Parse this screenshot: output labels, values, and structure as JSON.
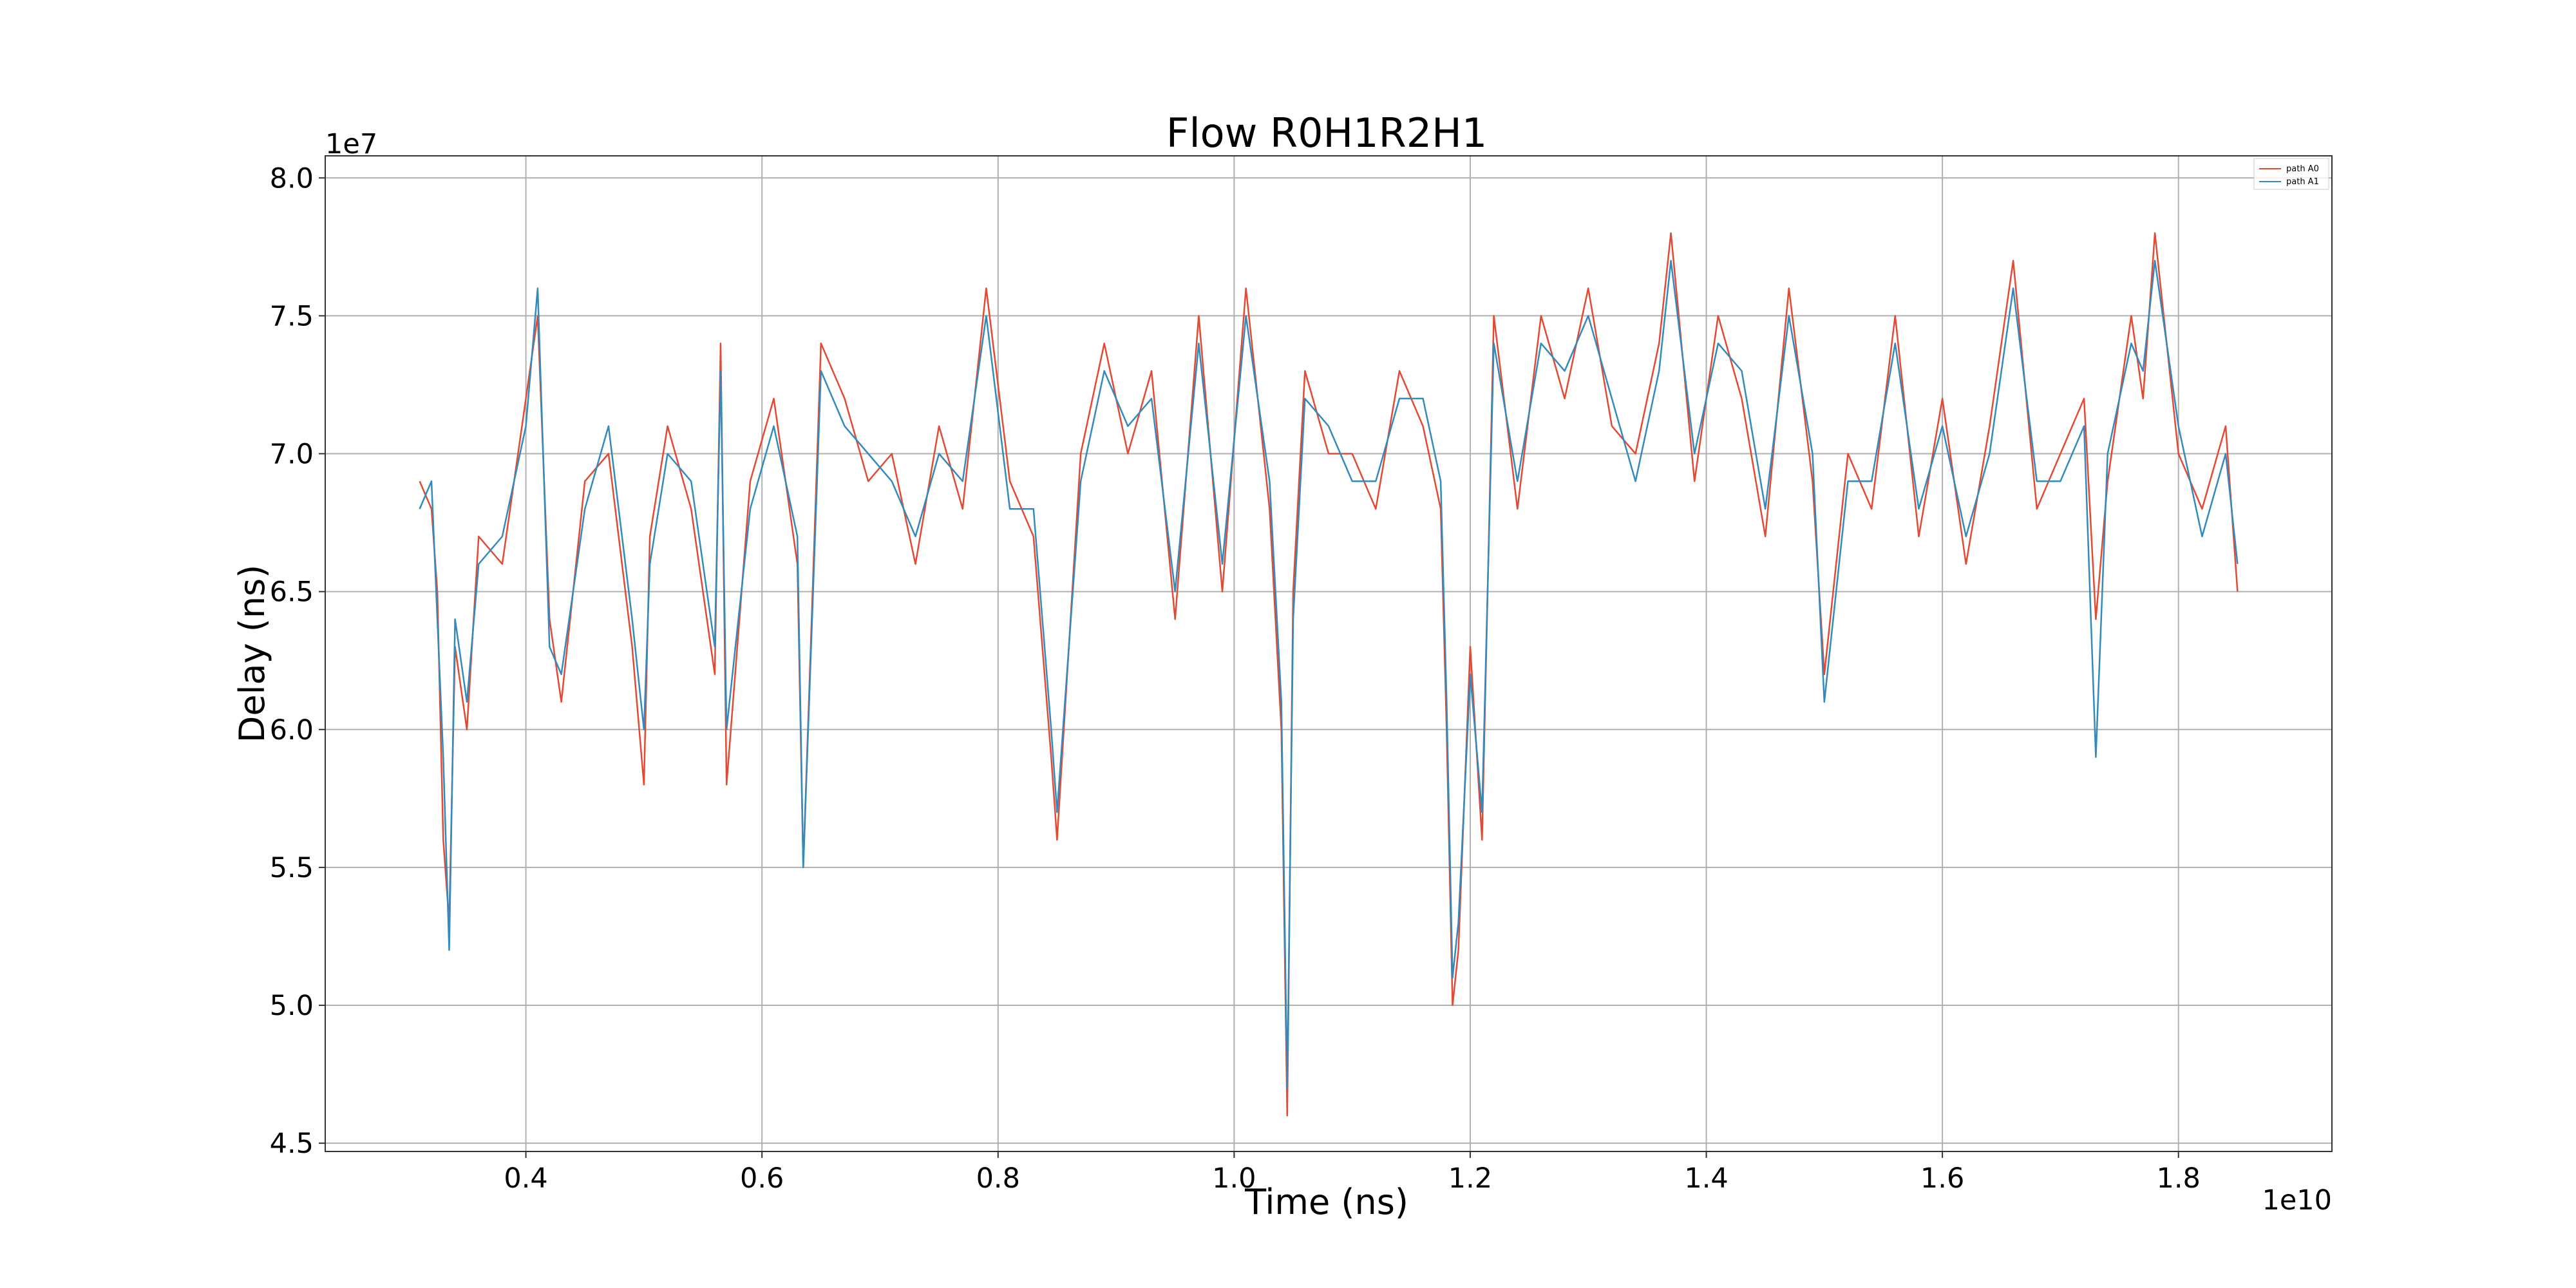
{
  "chart_data": {
    "type": "line",
    "title": "Flow R0H1R2H1",
    "xlabel": "Time (ns)",
    "ylabel": "Delay (ns)",
    "x_offset_label": "1e10",
    "y_offset_label": "1e7",
    "xlim": [
      0.23,
      1.93
    ],
    "ylim": [
      4.47,
      8.08
    ],
    "xticks": [
      0.4,
      0.6,
      0.8,
      1.0,
      1.2,
      1.4,
      1.6,
      1.8
    ],
    "xtick_labels": [
      "0.4",
      "0.6",
      "0.8",
      "1.0",
      "1.2",
      "1.4",
      "1.6",
      "1.8"
    ],
    "yticks": [
      4.5,
      5.0,
      5.5,
      6.0,
      6.5,
      7.0,
      7.5,
      8.0
    ],
    "ytick_labels": [
      "4.5",
      "5.0",
      "5.5",
      "6.0",
      "6.5",
      "7.0",
      "7.5",
      "8.0"
    ],
    "grid": true,
    "legend_position": "top-right",
    "series": [
      {
        "name": "path A0",
        "color": "#e24a33",
        "x": [
          0.31,
          0.32,
          0.325,
          0.33,
          0.335,
          0.34,
          0.35,
          0.36,
          0.38,
          0.4,
          0.41,
          0.42,
          0.43,
          0.45,
          0.47,
          0.49,
          0.5,
          0.505,
          0.52,
          0.54,
          0.56,
          0.565,
          0.57,
          0.59,
          0.61,
          0.63,
          0.635,
          0.65,
          0.67,
          0.69,
          0.71,
          0.73,
          0.75,
          0.77,
          0.79,
          0.81,
          0.83,
          0.845,
          0.85,
          0.87,
          0.89,
          0.91,
          0.93,
          0.95,
          0.97,
          0.99,
          1.01,
          1.03,
          1.04,
          1.045,
          1.05,
          1.06,
          1.08,
          1.1,
          1.12,
          1.14,
          1.16,
          1.175,
          1.18,
          1.185,
          1.19,
          1.2,
          1.21,
          1.22,
          1.24,
          1.26,
          1.28,
          1.3,
          1.32,
          1.34,
          1.36,
          1.37,
          1.39,
          1.41,
          1.43,
          1.45,
          1.47,
          1.49,
          1.5,
          1.52,
          1.54,
          1.56,
          1.58,
          1.6,
          1.62,
          1.64,
          1.66,
          1.68,
          1.7,
          1.72,
          1.73,
          1.74,
          1.76,
          1.77,
          1.78,
          1.8,
          1.82,
          1.84,
          1.85
        ],
        "values": [
          6.9,
          6.8,
          6.5,
          5.6,
          5.3,
          6.3,
          6.0,
          6.7,
          6.6,
          7.2,
          7.5,
          6.4,
          6.1,
          6.9,
          7.0,
          6.3,
          5.8,
          6.7,
          7.1,
          6.8,
          6.2,
          7.4,
          5.8,
          6.9,
          7.2,
          6.6,
          5.5,
          7.4,
          7.2,
          6.9,
          7.0,
          6.6,
          7.1,
          6.8,
          7.6,
          6.9,
          6.7,
          5.9,
          5.6,
          7.0,
          7.4,
          7.0,
          7.3,
          6.4,
          7.5,
          6.5,
          7.6,
          6.8,
          6.0,
          4.6,
          6.5,
          7.3,
          7.0,
          7.0,
          6.8,
          7.3,
          7.1,
          6.8,
          6.0,
          5.0,
          5.2,
          6.3,
          5.6,
          7.5,
          6.8,
          7.5,
          7.2,
          7.6,
          7.1,
          7.0,
          7.4,
          7.8,
          6.9,
          7.5,
          7.2,
          6.7,
          7.6,
          6.9,
          6.2,
          7.0,
          6.8,
          7.5,
          6.7,
          7.2,
          6.6,
          7.1,
          7.7,
          6.8,
          7.0,
          7.2,
          6.4,
          6.9,
          7.5,
          7.2,
          7.8,
          7.0,
          6.8,
          7.1,
          6.5
        ]
      },
      {
        "name": "path A1",
        "color": "#348abd",
        "x": [
          0.31,
          0.32,
          0.325,
          0.33,
          0.335,
          0.34,
          0.35,
          0.36,
          0.38,
          0.4,
          0.41,
          0.42,
          0.43,
          0.45,
          0.47,
          0.49,
          0.5,
          0.505,
          0.52,
          0.54,
          0.56,
          0.565,
          0.57,
          0.59,
          0.61,
          0.63,
          0.635,
          0.65,
          0.67,
          0.69,
          0.71,
          0.73,
          0.75,
          0.77,
          0.79,
          0.81,
          0.83,
          0.845,
          0.85,
          0.87,
          0.89,
          0.91,
          0.93,
          0.95,
          0.97,
          0.99,
          1.01,
          1.03,
          1.04,
          1.045,
          1.05,
          1.06,
          1.08,
          1.1,
          1.12,
          1.14,
          1.16,
          1.175,
          1.18,
          1.185,
          1.19,
          1.2,
          1.21,
          1.22,
          1.24,
          1.26,
          1.28,
          1.3,
          1.32,
          1.34,
          1.36,
          1.37,
          1.39,
          1.41,
          1.43,
          1.45,
          1.47,
          1.49,
          1.5,
          1.52,
          1.54,
          1.56,
          1.58,
          1.6,
          1.62,
          1.64,
          1.66,
          1.68,
          1.7,
          1.72,
          1.73,
          1.74,
          1.76,
          1.77,
          1.78,
          1.8,
          1.82,
          1.84,
          1.85
        ],
        "values": [
          6.8,
          6.9,
          6.4,
          5.9,
          5.2,
          6.4,
          6.1,
          6.6,
          6.7,
          7.1,
          7.6,
          6.3,
          6.2,
          6.8,
          7.1,
          6.4,
          6.0,
          6.6,
          7.0,
          6.9,
          6.3,
          7.3,
          6.0,
          6.8,
          7.1,
          6.7,
          5.5,
          7.3,
          7.1,
          7.0,
          6.9,
          6.7,
          7.0,
          6.9,
          7.5,
          6.8,
          6.8,
          6.0,
          5.7,
          6.9,
          7.3,
          7.1,
          7.2,
          6.5,
          7.4,
          6.6,
          7.5,
          6.9,
          6.1,
          4.7,
          6.4,
          7.2,
          7.1,
          6.9,
          6.9,
          7.2,
          7.2,
          6.9,
          6.1,
          5.1,
          5.3,
          6.2,
          5.7,
          7.4,
          6.9,
          7.4,
          7.3,
          7.5,
          7.2,
          6.9,
          7.3,
          7.7,
          7.0,
          7.4,
          7.3,
          6.8,
          7.5,
          7.0,
          6.1,
          6.9,
          6.9,
          7.4,
          6.8,
          7.1,
          6.7,
          7.0,
          7.6,
          6.9,
          6.9,
          7.1,
          5.9,
          7.0,
          7.4,
          7.3,
          7.7,
          7.1,
          6.7,
          7.0,
          6.6
        ]
      }
    ]
  }
}
